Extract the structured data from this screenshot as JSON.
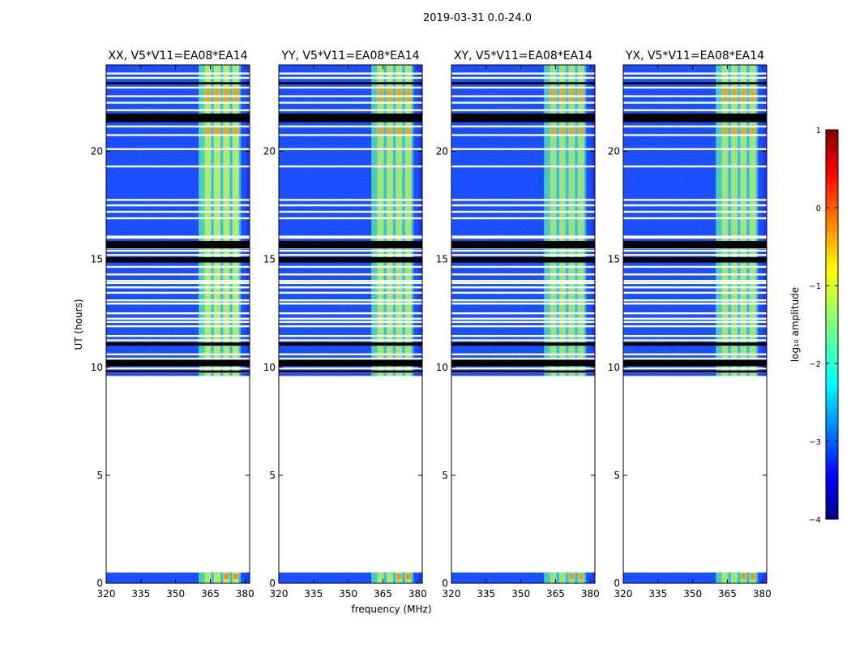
{
  "chart_data": {
    "type": "heatmap",
    "suptitle": "2019-03-31 0.0-24.0",
    "xlabel": "frequency (MHz)",
    "ylabel": "UT (hours)",
    "xlim": [
      320,
      382
    ],
    "ylim": [
      0,
      24
    ],
    "xticks": [
      320,
      335,
      350,
      365,
      380
    ],
    "yticks": [
      0,
      5,
      10,
      15,
      20
    ],
    "panels": [
      {
        "title": "XX, V5*V11=EA08*EA14",
        "strength": 1.0
      },
      {
        "title": "YY, V5*V11=EA08*EA14",
        "strength": 0.9
      },
      {
        "title": "XY, V5*V11=EA08*EA14",
        "strength": 0.8
      },
      {
        "title": "YX, V5*V11=EA08*EA14",
        "strength": 0.85
      }
    ],
    "data_time_ranges_hours": [
      [
        0.0,
        0.5
      ],
      [
        9.6,
        24.0
      ]
    ],
    "rfi_band_mhz": [
      360,
      378
    ],
    "rfi_channels_mhz": [
      364,
      368,
      372,
      376
    ],
    "flagged_rows_white_hours": [
      8.98,
      15.2,
      12.95,
      13.7,
      9.95,
      13.1,
      12.5,
      13.45,
      9.78,
      16.9,
      17.75,
      17.2,
      19.3,
      20.1,
      17.5,
      20.75,
      14.65,
      14.0,
      11.9,
      21.15,
      10.6,
      11.45,
      11.25,
      12.25,
      23.4,
      22.95,
      15.52,
      22.55,
      14.3,
      16.0,
      22.25,
      13.9,
      21.9,
      16.05,
      12.1,
      10.4,
      23.6,
      15.4
    ],
    "flagged_rows_black_hours": [
      [
        21.35,
        21.75
      ],
      [
        14.85,
        15.1
      ],
      [
        15.5,
        15.85
      ],
      [
        11.0,
        11.15
      ],
      [
        10.05,
        10.35
      ],
      [
        23.1,
        23.2
      ],
      [
        9.75,
        9.85
      ]
    ],
    "colorbar": {
      "label": "log₁₀ amplitude",
      "range": [
        -4,
        1
      ],
      "ticks": [
        "1",
        "0",
        "−1",
        "−2",
        "−3",
        "−4"
      ],
      "colormap": "jet"
    }
  }
}
